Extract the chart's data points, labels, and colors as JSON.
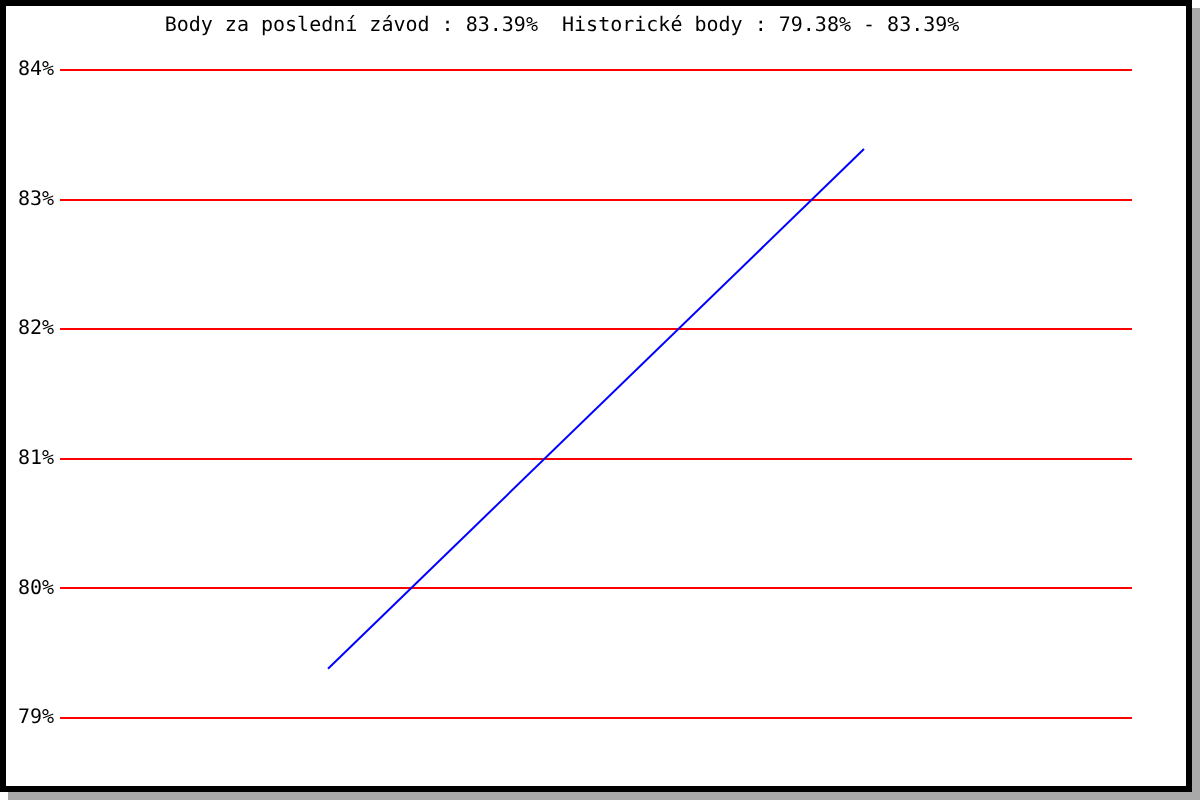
{
  "chart_data": {
    "type": "line",
    "title": "Body za poslední závod : 83.39%  Historické body : 79.38% - 83.39%",
    "categories": [
      null,
      null
    ],
    "values": [
      79.38,
      83.39
    ],
    "color": "#0000ff",
    "ylim": [
      79,
      84
    ],
    "yticks": [
      {
        "value": 79,
        "label": "79%"
      },
      {
        "value": 80,
        "label": "80%"
      },
      {
        "value": 81,
        "label": "81%"
      },
      {
        "value": 82,
        "label": "82%"
      },
      {
        "value": 83,
        "label": "83%"
      },
      {
        "value": 84,
        "label": "84%"
      }
    ],
    "grid": "y",
    "tick_labels": "y",
    "marker": "none",
    "line_style": "solid"
  }
}
